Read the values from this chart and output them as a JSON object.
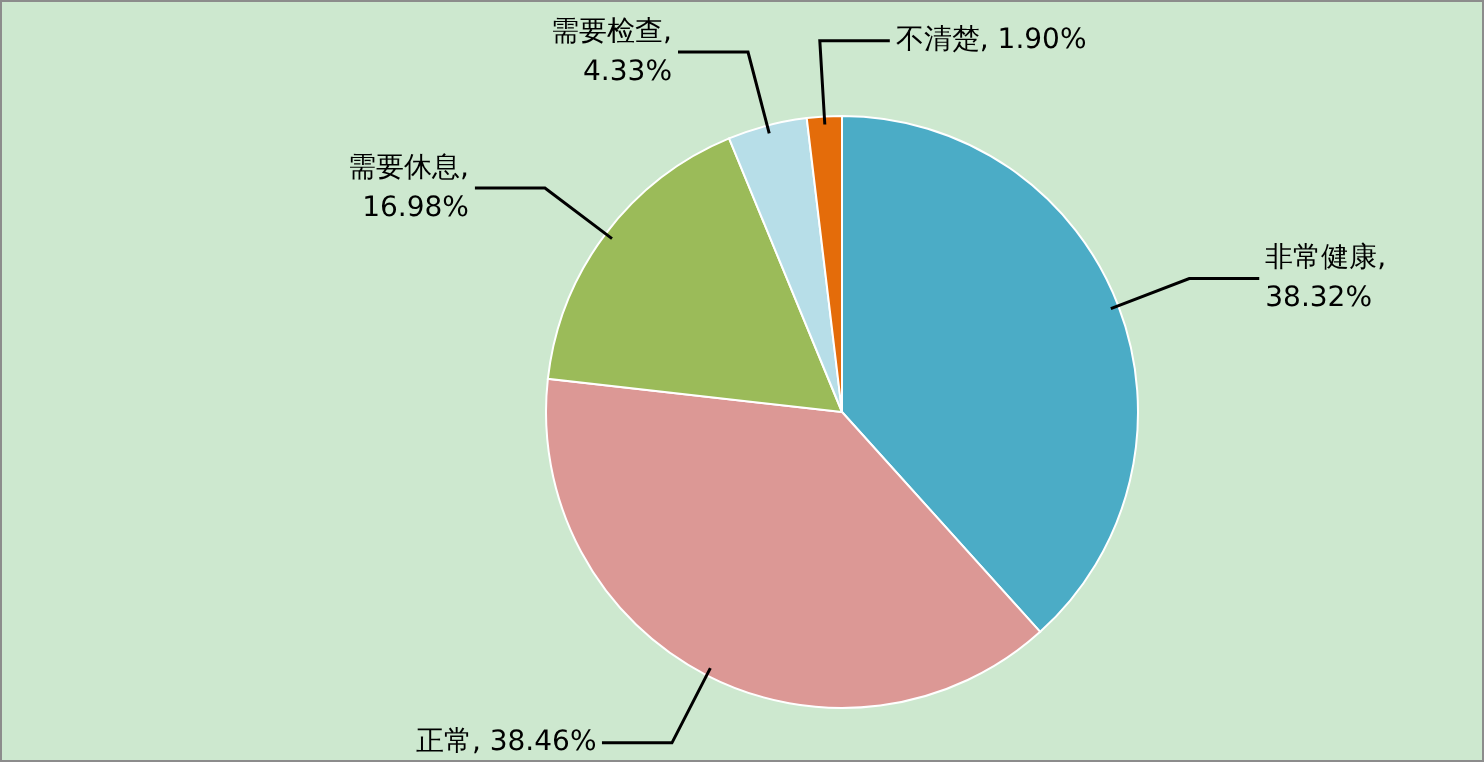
{
  "chart_data": {
    "type": "pie",
    "categories": [
      "非常健康",
      "正常",
      "需要休息",
      "需要检查",
      "不清楚"
    ],
    "values": [
      38.32,
      38.46,
      16.98,
      4.33,
      1.9
    ],
    "value_labels": [
      ", 38.32%",
      ", 38.46%",
      ", 16.98%",
      ", 4.33%",
      ", 1.90%"
    ],
    "colors": [
      "#4bacc6",
      "#dc9895",
      "#9bbb59",
      "#b7dee8",
      "#e46c0a"
    ]
  }
}
